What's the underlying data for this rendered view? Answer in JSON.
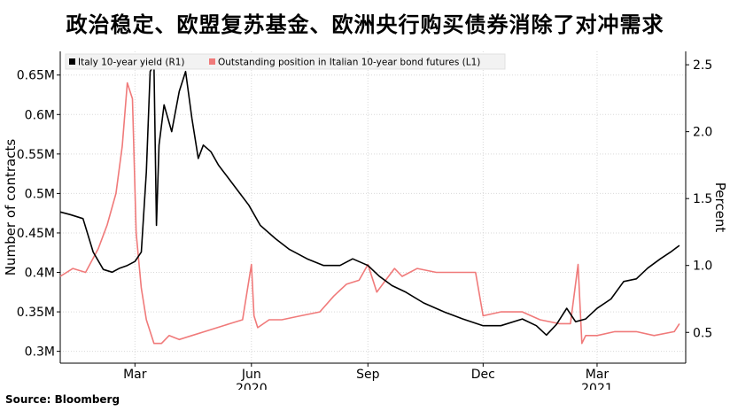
{
  "title": "政治稳定、欧盟复苏基金、欧洲央行购买债券消除了对冲需求",
  "source": "Source: Bloomberg",
  "chart_data": {
    "type": "line",
    "left_axis": {
      "label": "Number of contracts",
      "ticks": [
        0.3,
        0.35,
        0.4,
        0.45,
        0.5,
        0.55,
        0.6,
        0.65
      ],
      "tick_labels": [
        "0.3M",
        "0.35M",
        "0.4M",
        "0.45M",
        "0.5M",
        "0.55M",
        "0.6M",
        "0.65M"
      ],
      "range": [
        0.285,
        0.68
      ]
    },
    "right_axis": {
      "label": "Percent",
      "ticks": [
        0.5,
        1.0,
        1.5,
        2.0,
        2.5
      ],
      "tick_labels": [
        "0.5",
        "1.0",
        "1.5",
        "2.0",
        "2.5"
      ],
      "range": [
        0.27,
        2.6
      ]
    },
    "x_axis": {
      "range": [
        "2020-01-02",
        "2021-05-10"
      ],
      "ticks": [
        {
          "date": "2020-03-01",
          "label": "Mar"
        },
        {
          "date": "2020-06-01",
          "label": "Jun"
        },
        {
          "date": "2020-09-01",
          "label": "Sep"
        },
        {
          "date": "2020-12-01",
          "label": "Dec"
        },
        {
          "date": "2021-03-01",
          "label": "Mar"
        }
      ],
      "year_labels": [
        {
          "date": "2020-06-01",
          "label": "2020"
        },
        {
          "date": "2021-03-01",
          "label": "2021"
        }
      ]
    },
    "legend": {
      "position": "top-left"
    },
    "series": [
      {
        "name": "Italy 10-year yield (R1)",
        "axis": "right",
        "color": "#000000",
        "x": [
          "2020-01-02",
          "2020-01-10",
          "2020-01-20",
          "2020-01-28",
          "2020-02-05",
          "2020-02-12",
          "2020-02-18",
          "2020-02-24",
          "2020-03-01",
          "2020-03-06",
          "2020-03-10",
          "2020-03-13",
          "2020-03-16",
          "2020-03-18",
          "2020-03-20",
          "2020-03-24",
          "2020-03-30",
          "2020-04-05",
          "2020-04-10",
          "2020-04-15",
          "2020-04-20",
          "2020-04-24",
          "2020-04-30",
          "2020-05-06",
          "2020-05-14",
          "2020-05-22",
          "2020-05-30",
          "2020-06-08",
          "2020-06-20",
          "2020-07-01",
          "2020-07-15",
          "2020-07-28",
          "2020-08-10",
          "2020-08-20",
          "2020-09-01",
          "2020-09-10",
          "2020-09-20",
          "2020-10-01",
          "2020-10-15",
          "2020-11-01",
          "2020-11-15",
          "2020-12-01",
          "2020-12-15",
          "2021-01-01",
          "2021-01-12",
          "2021-01-20",
          "2021-01-28",
          "2021-02-05",
          "2021-02-12",
          "2021-02-20",
          "2021-03-01",
          "2021-03-12",
          "2021-03-22",
          "2021-04-01",
          "2021-04-10",
          "2021-04-20",
          "2021-04-28",
          "2021-05-05"
        ],
        "y": [
          1.4,
          1.38,
          1.35,
          1.1,
          0.97,
          0.95,
          0.98,
          1.0,
          1.03,
          1.1,
          1.7,
          2.45,
          2.5,
          1.3,
          1.9,
          2.2,
          2.0,
          2.3,
          2.45,
          2.1,
          1.8,
          1.9,
          1.85,
          1.75,
          1.65,
          1.55,
          1.45,
          1.3,
          1.2,
          1.12,
          1.05,
          1.0,
          1.0,
          1.05,
          1.0,
          0.92,
          0.85,
          0.8,
          0.72,
          0.65,
          0.6,
          0.55,
          0.55,
          0.6,
          0.55,
          0.48,
          0.56,
          0.68,
          0.58,
          0.6,
          0.68,
          0.75,
          0.88,
          0.9,
          0.98,
          1.05,
          1.1,
          1.15
        ]
      },
      {
        "name": "Outstanding position in Italian 10-year bond futures (L1)",
        "axis": "left",
        "color": "#f07a7a",
        "x": [
          "2020-01-02",
          "2020-01-12",
          "2020-01-22",
          "2020-02-01",
          "2020-02-08",
          "2020-02-15",
          "2020-02-20",
          "2020-02-24",
          "2020-02-28",
          "2020-03-02",
          "2020-03-06",
          "2020-03-10",
          "2020-03-16",
          "2020-03-22",
          "2020-03-28",
          "2020-04-05",
          "2020-04-15",
          "2020-04-25",
          "2020-05-05",
          "2020-05-15",
          "2020-05-25",
          "2020-06-01",
          "2020-06-03",
          "2020-06-06",
          "2020-06-15",
          "2020-06-25",
          "2020-07-10",
          "2020-07-25",
          "2020-08-05",
          "2020-08-15",
          "2020-08-25",
          "2020-09-01",
          "2020-09-08",
          "2020-09-15",
          "2020-09-22",
          "2020-09-28",
          "2020-10-10",
          "2020-10-25",
          "2020-11-10",
          "2020-11-25",
          "2020-12-01",
          "2020-12-15",
          "2021-01-01",
          "2021-01-15",
          "2021-01-30",
          "2021-02-08",
          "2021-02-14",
          "2021-02-17",
          "2021-02-20",
          "2021-03-01",
          "2021-03-15",
          "2021-04-01",
          "2021-04-15",
          "2021-05-01",
          "2021-05-05"
        ],
        "y": [
          0.395,
          0.405,
          0.4,
          0.43,
          0.46,
          0.5,
          0.56,
          0.64,
          0.62,
          0.45,
          0.38,
          0.34,
          0.31,
          0.31,
          0.32,
          0.315,
          0.32,
          0.325,
          0.33,
          0.335,
          0.34,
          0.41,
          0.345,
          0.33,
          0.34,
          0.34,
          0.345,
          0.35,
          0.37,
          0.385,
          0.39,
          0.41,
          0.375,
          0.39,
          0.405,
          0.395,
          0.405,
          0.4,
          0.4,
          0.4,
          0.345,
          0.35,
          0.35,
          0.34,
          0.335,
          0.335,
          0.41,
          0.31,
          0.32,
          0.32,
          0.325,
          0.325,
          0.32,
          0.325,
          0.335
        ]
      }
    ]
  }
}
